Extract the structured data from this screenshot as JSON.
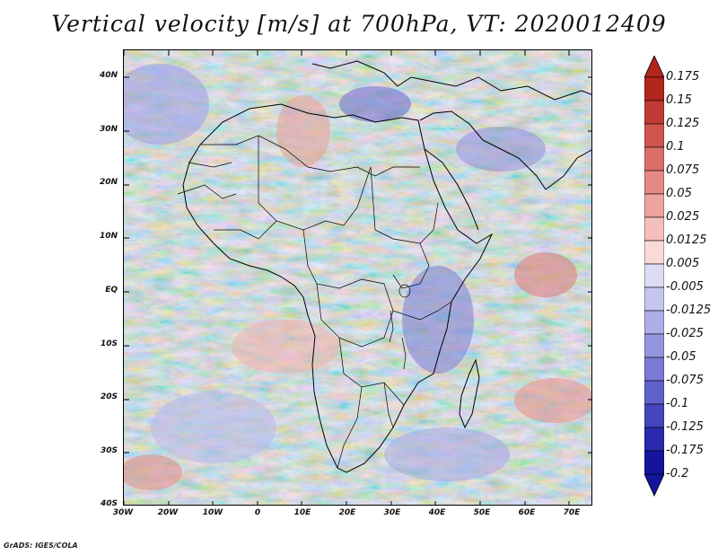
{
  "title": "Vertical velocity [m/s] at 700hPa, VT: 2020012409",
  "map": {
    "variable": "Vertical velocity",
    "units": "m/s",
    "level": "700hPa",
    "valid_time": "2020012409",
    "region": "Africa",
    "lon_range": [
      -30,
      75
    ],
    "lat_range": [
      -40,
      45
    ],
    "lat_labels": [
      "40N",
      "30N",
      "20N",
      "10N",
      "EQ",
      "10S",
      "20S",
      "30S",
      "40S"
    ],
    "lon_labels": [
      "30W",
      "20W",
      "10W",
      "0",
      "10E",
      "20E",
      "30E",
      "40E",
      "50E",
      "60E",
      "70E"
    ]
  },
  "colorbar": {
    "labels": [
      "0.175",
      "0.15",
      "0.125",
      "0.1",
      "0.075",
      "0.05",
      "0.025",
      "0.0125",
      "0.005",
      "-0.005",
      "-0.0125",
      "-0.025",
      "-0.05",
      "-0.075",
      "-0.1",
      "-0.125",
      "-0.175",
      "-0.2"
    ],
    "colors": [
      "#b3261e",
      "#c23a34",
      "#d1554f",
      "#dc6f69",
      "#e58984",
      "#eea39f",
      "#f4bfbc",
      "#f9dad8",
      "#ffffff",
      "#dcdcf4",
      "#c5c5ee",
      "#aeaee7",
      "#9595df",
      "#7b7bd5",
      "#6060cb",
      "#4545bd",
      "#2a2aae",
      "#14149c"
    ]
  },
  "credit": "GrADS: IGES/COLA"
}
